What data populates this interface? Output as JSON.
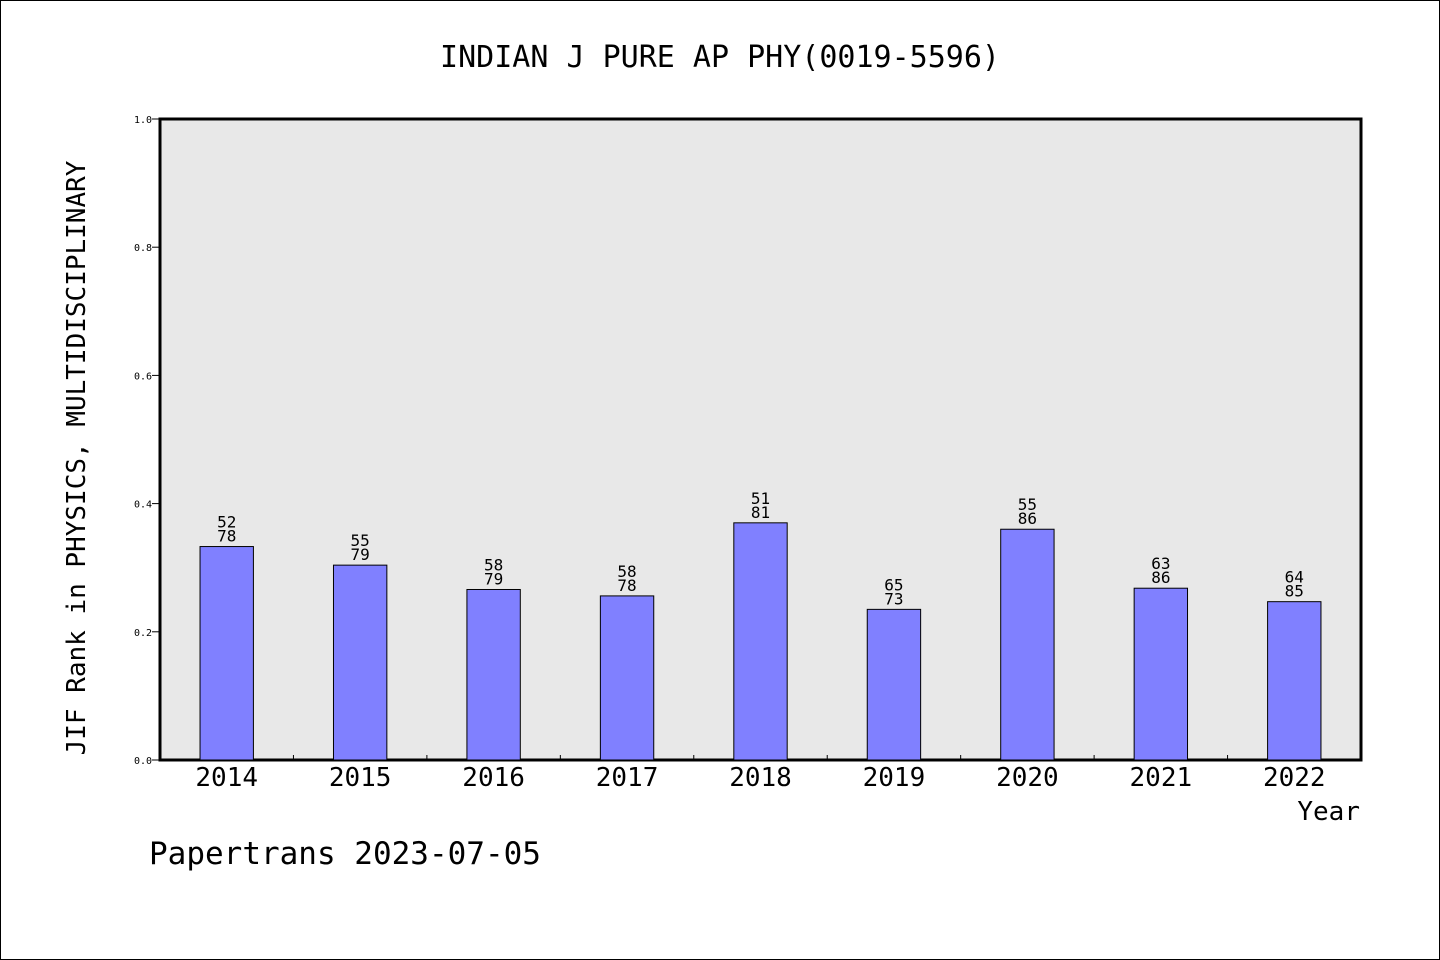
{
  "chart_data": {
    "type": "bar",
    "title": "INDIAN J PURE AP PHY(0019-5596)",
    "xlabel": "Year",
    "ylabel": "JIF Rank in PHYSICS, MULTIDISCIPLINARY",
    "ylim": [
      0,
      1.0
    ],
    "yticks": [
      "0.0",
      "0.2",
      "0.4",
      "0.6",
      "0.8",
      "1.0"
    ],
    "grid": false,
    "categories": [
      "2014",
      "2015",
      "2016",
      "2017",
      "2018",
      "2019",
      "2020",
      "2021",
      "2022"
    ],
    "values": [
      0.333,
      0.304,
      0.266,
      0.256,
      0.37,
      0.235,
      0.36,
      0.268,
      0.247
    ],
    "labels_top": [
      "52",
      "55",
      "58",
      "58",
      "51",
      "65",
      "55",
      "63",
      "64"
    ],
    "labels_bottom": [
      "78",
      "79",
      "79",
      "78",
      "81",
      "73",
      "86",
      "86",
      "85"
    ],
    "bar_color": "#8080ff",
    "plot_background": "#e8e8e8"
  },
  "footer": "Papertrans 2023-07-05"
}
